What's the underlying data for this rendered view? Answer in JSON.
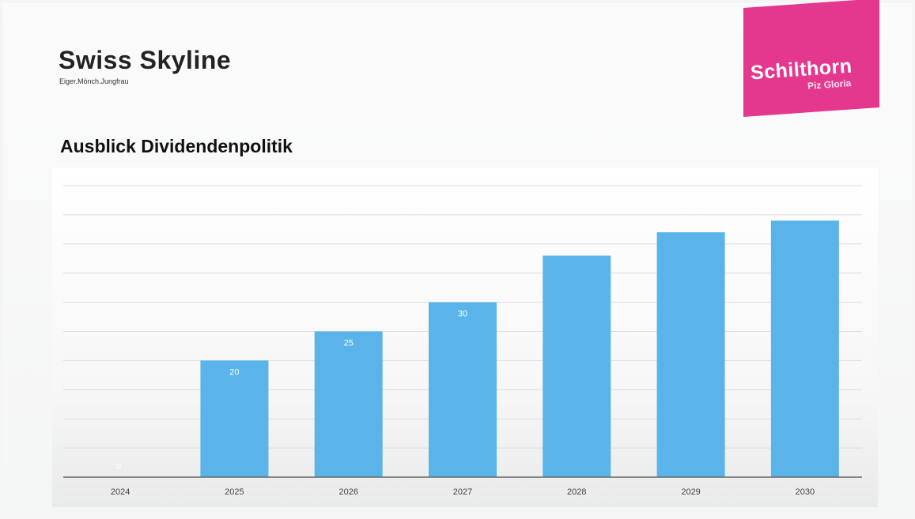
{
  "header": {
    "title": "Swiss Skyline",
    "subtitle": "Eiger.Mönch.Jungfrau"
  },
  "logo": {
    "name": "Schilthorn",
    "sub": "Piz Gloria",
    "color": "#e4388f"
  },
  "section_title": "Ausblick Dividendenpolitik",
  "chart_data": {
    "type": "bar",
    "categories": [
      "2024",
      "2025",
      "2026",
      "2027",
      "2028",
      "2029",
      "2030"
    ],
    "values": [
      0,
      20,
      25,
      30,
      38,
      42,
      44
    ],
    "value_labels": [
      "0",
      "20",
      "25",
      "30",
      "",
      "",
      ""
    ],
    "ylim": [
      0,
      50
    ],
    "grid": true,
    "bar_color": "#5ab4ea",
    "title": "",
    "xlabel": "",
    "ylabel": ""
  }
}
